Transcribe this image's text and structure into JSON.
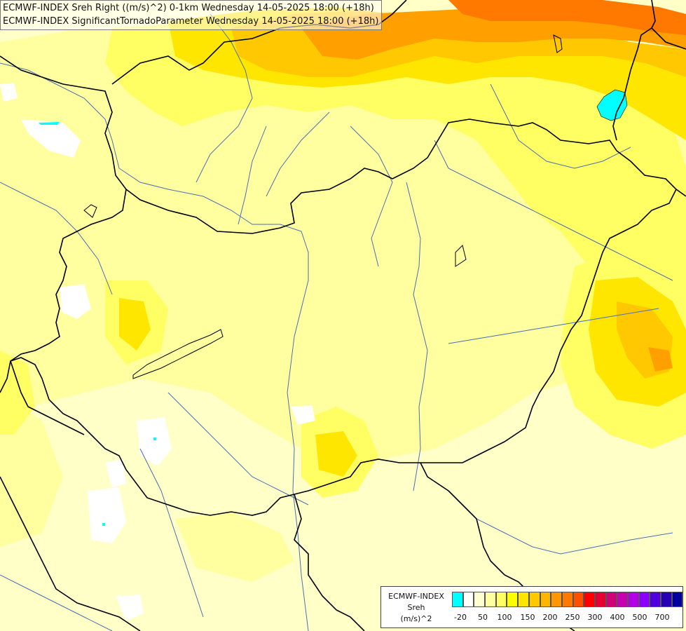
{
  "header": {
    "line1": "ECMWF-INDEX Sreh Right ((m/s)^2) 0-1km Wednesday 14-05-2025 18:00 (+18h)",
    "line2": "ECMWF-INDEX SignificantTornadoParameter Wednesday 14-05-2025 18:00 (+18h)"
  },
  "legend": {
    "title_line1": "ECMWF-INDEX",
    "title_line2": "Sreh",
    "title_line3": "(m/s)^2",
    "colors": [
      "#00ffff",
      "#ffffff",
      "#ffffd2",
      "#ffffa0",
      "#ffff64",
      "#ffff00",
      "#ffe600",
      "#ffc800",
      "#ffb400",
      "#ff9600",
      "#ff7800",
      "#ff5000",
      "#ff0000",
      "#e60032",
      "#d20078",
      "#c800b4",
      "#b400e6",
      "#8c00ff",
      "#5000dc",
      "#2800b4",
      "#0000a0"
    ],
    "ticks": [
      "-20",
      "50",
      "100",
      "150",
      "200",
      "250",
      "300",
      "400",
      "500",
      "700"
    ]
  },
  "map": {
    "background_color": "#ffffc8",
    "field_colors": {
      "light": "#ffffc8",
      "pale": "#ffffa0",
      "yellow": "#ffff64",
      "gold": "#ffe600",
      "amber": "#ffc800",
      "orange": "#ffa000",
      "deep_orange": "#ff7800",
      "white": "#ffffff",
      "cyan": "#00ffff"
    },
    "river_color": "#4a6fb5",
    "border_color": "#000000"
  }
}
